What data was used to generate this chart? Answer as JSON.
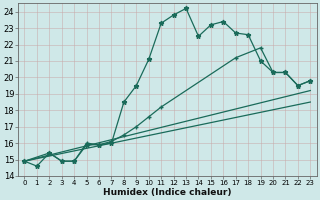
{
  "xlabel": "Humidex (Indice chaleur)",
  "xlim": [
    -0.5,
    23.5
  ],
  "ylim": [
    14,
    24.5
  ],
  "xticks": [
    0,
    1,
    2,
    3,
    4,
    5,
    6,
    7,
    8,
    9,
    10,
    11,
    12,
    13,
    14,
    15,
    16,
    17,
    18,
    19,
    20,
    21,
    22,
    23
  ],
  "yticks": [
    14,
    15,
    16,
    17,
    18,
    19,
    20,
    21,
    22,
    23,
    24
  ],
  "bg_color": "#cfe8e8",
  "line_color": "#1a6b5a",
  "grid_color": "#b0d4d4",
  "line1_x": [
    0,
    1,
    2,
    3,
    4,
    5,
    6,
    7,
    8,
    9,
    10,
    11,
    12,
    13,
    14,
    15,
    16,
    17,
    18,
    19,
    20,
    21,
    22,
    23
  ],
  "line1_y": [
    14.9,
    14.6,
    15.4,
    14.9,
    14.9,
    15.9,
    15.9,
    16.0,
    18.5,
    19.5,
    21.1,
    23.3,
    23.8,
    24.2,
    22.5,
    23.2,
    23.4,
    22.7,
    22.6,
    21.0,
    20.3,
    20.3,
    19.5,
    19.8
  ],
  "line2_x": [
    0,
    2,
    3,
    4,
    5,
    6,
    7,
    8,
    9,
    10,
    11,
    17,
    19,
    20,
    21,
    22,
    23
  ],
  "line2_y": [
    14.9,
    15.4,
    14.9,
    14.9,
    16.0,
    15.9,
    16.1,
    16.5,
    17.0,
    17.6,
    18.2,
    21.2,
    21.8,
    20.3,
    20.3,
    19.5,
    19.8
  ],
  "line3_x": [
    0,
    23
  ],
  "line3_y": [
    14.9,
    19.2
  ],
  "line4_x": [
    0,
    23
  ],
  "line4_y": [
    14.9,
    18.5
  ]
}
